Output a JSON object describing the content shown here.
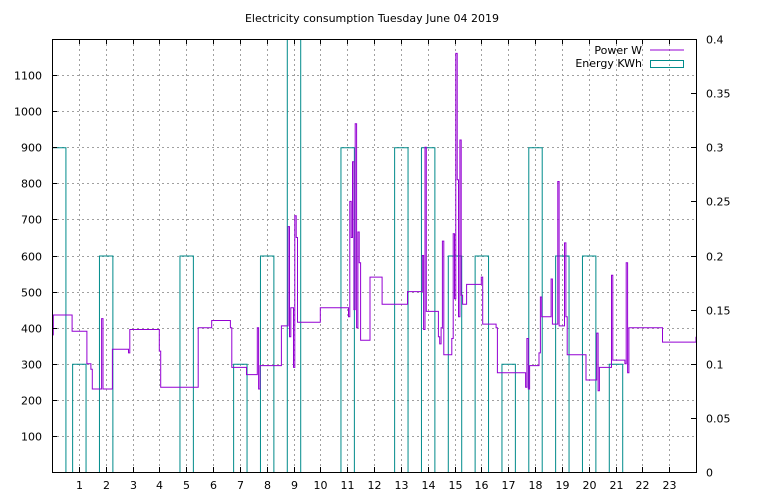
{
  "chart_data": {
    "type": "line",
    "title": "Electricity consumption Tuesday June 04 2019",
    "xlabel": "",
    "ylabel": "",
    "y2label": "",
    "xlim": [
      0,
      24
    ],
    "ylim": [
      0,
      1200
    ],
    "y2lim": [
      0,
      0.4
    ],
    "x_ticks": [
      1,
      2,
      3,
      4,
      5,
      6,
      7,
      8,
      9,
      10,
      11,
      12,
      13,
      14,
      15,
      16,
      17,
      18,
      19,
      20,
      21,
      22,
      23
    ],
    "y_ticks": [
      100,
      200,
      300,
      400,
      500,
      600,
      700,
      800,
      900,
      1000,
      1100
    ],
    "y2_ticks": [
      "0",
      "0.05",
      "0.1",
      "0.15",
      "0.2",
      "0.25",
      "0.3",
      "0.35",
      "0.4"
    ],
    "grid": true,
    "legend_position": "top-right",
    "series": [
      {
        "name": "Power W",
        "color": "#9400d3",
        "style": "step-line",
        "points": [
          [
            0.0,
            380
          ],
          [
            0.05,
            435
          ],
          [
            0.7,
            435
          ],
          [
            0.75,
            390
          ],
          [
            1.2,
            390
          ],
          [
            1.3,
            300
          ],
          [
            1.45,
            285
          ],
          [
            1.5,
            230
          ],
          [
            1.8,
            230
          ],
          [
            1.85,
            425
          ],
          [
            1.9,
            230
          ],
          [
            2.2,
            230
          ],
          [
            2.25,
            340
          ],
          [
            2.8,
            340
          ],
          [
            2.85,
            330
          ],
          [
            2.9,
            395
          ],
          [
            3.9,
            395
          ],
          [
            4.0,
            335
          ],
          [
            4.05,
            235
          ],
          [
            5.4,
            235
          ],
          [
            5.45,
            400
          ],
          [
            5.9,
            400
          ],
          [
            5.95,
            420
          ],
          [
            6.6,
            420
          ],
          [
            6.65,
            400
          ],
          [
            6.7,
            290
          ],
          [
            7.2,
            290
          ],
          [
            7.25,
            270
          ],
          [
            7.6,
            270
          ],
          [
            7.65,
            400
          ],
          [
            7.7,
            230
          ],
          [
            7.75,
            295
          ],
          [
            8.5,
            295
          ],
          [
            8.55,
            405
          ],
          [
            8.75,
            405
          ],
          [
            8.8,
            680
          ],
          [
            8.85,
            375
          ],
          [
            8.9,
            455
          ],
          [
            9.0,
            290
          ],
          [
            9.05,
            710
          ],
          [
            9.1,
            650
          ],
          [
            9.15,
            415
          ],
          [
            9.95,
            415
          ],
          [
            10.0,
            455
          ],
          [
            11.0,
            455
          ],
          [
            11.05,
            430
          ],
          [
            11.1,
            750
          ],
          [
            11.15,
            650
          ],
          [
            11.2,
            860
          ],
          [
            11.25,
            450
          ],
          [
            11.3,
            965
          ],
          [
            11.35,
            400
          ],
          [
            11.4,
            665
          ],
          [
            11.45,
            580
          ],
          [
            11.5,
            365
          ],
          [
            11.8,
            365
          ],
          [
            11.85,
            540
          ],
          [
            12.25,
            540
          ],
          [
            12.3,
            465
          ],
          [
            13.2,
            465
          ],
          [
            13.25,
            500
          ],
          [
            13.75,
            500
          ],
          [
            13.8,
            600
          ],
          [
            13.85,
            395
          ],
          [
            13.9,
            900
          ],
          [
            13.95,
            445
          ],
          [
            14.35,
            445
          ],
          [
            14.4,
            375
          ],
          [
            14.45,
            355
          ],
          [
            14.5,
            400
          ],
          [
            14.55,
            640
          ],
          [
            14.6,
            325
          ],
          [
            14.85,
            325
          ],
          [
            14.9,
            370
          ],
          [
            14.95,
            660
          ],
          [
            15.0,
            480
          ],
          [
            15.05,
            1160
          ],
          [
            15.1,
            810
          ],
          [
            15.15,
            430
          ],
          [
            15.2,
            920
          ],
          [
            15.25,
            490
          ],
          [
            15.3,
            465
          ],
          [
            15.4,
            465
          ],
          [
            15.45,
            520
          ],
          [
            15.95,
            520
          ],
          [
            16.0,
            540
          ],
          [
            16.05,
            410
          ],
          [
            16.5,
            410
          ],
          [
            16.55,
            400
          ],
          [
            16.6,
            275
          ],
          [
            17.6,
            275
          ],
          [
            17.65,
            235
          ],
          [
            17.7,
            370
          ],
          [
            17.75,
            230
          ],
          [
            17.8,
            295
          ],
          [
            18.1,
            295
          ],
          [
            18.15,
            330
          ],
          [
            18.2,
            485
          ],
          [
            18.25,
            430
          ],
          [
            18.55,
            430
          ],
          [
            18.6,
            535
          ],
          [
            18.65,
            410
          ],
          [
            18.8,
            410
          ],
          [
            18.85,
            805
          ],
          [
            18.9,
            405
          ],
          [
            19.05,
            405
          ],
          [
            19.1,
            635
          ],
          [
            19.15,
            430
          ],
          [
            19.2,
            325
          ],
          [
            19.85,
            325
          ],
          [
            19.9,
            255
          ],
          [
            20.25,
            255
          ],
          [
            20.3,
            385
          ],
          [
            20.35,
            225
          ],
          [
            20.4,
            290
          ],
          [
            20.8,
            290
          ],
          [
            20.85,
            545
          ],
          [
            20.9,
            310
          ],
          [
            21.3,
            310
          ],
          [
            21.35,
            300
          ],
          [
            21.4,
            580
          ],
          [
            21.45,
            275
          ],
          [
            21.5,
            400
          ],
          [
            22.7,
            400
          ],
          [
            22.75,
            360
          ],
          [
            24.0,
            375
          ]
        ]
      },
      {
        "name": "Energy KWh",
        "color": "#008b8b",
        "style": "bars",
        "bar_width_hours": 0.5,
        "bars": [
          {
            "x": 0.0,
            "value": 0.3
          },
          {
            "x": 0.75,
            "value": 0.1
          },
          {
            "x": 1.75,
            "value": 0.2
          },
          {
            "x": 4.75,
            "value": 0.2
          },
          {
            "x": 6.75,
            "value": 0.1
          },
          {
            "x": 7.75,
            "value": 0.2
          },
          {
            "x": 8.75,
            "value": 0.4
          },
          {
            "x": 10.75,
            "value": 0.3
          },
          {
            "x": 12.75,
            "value": 0.3
          },
          {
            "x": 13.75,
            "value": 0.3
          },
          {
            "x": 14.75,
            "value": 0.2
          },
          {
            "x": 15.75,
            "value": 0.2
          },
          {
            "x": 16.75,
            "value": 0.1
          },
          {
            "x": 17.75,
            "value": 0.3
          },
          {
            "x": 18.75,
            "value": 0.2
          },
          {
            "x": 19.75,
            "value": 0.2
          },
          {
            "x": 20.75,
            "value": 0.1
          }
        ]
      }
    ]
  }
}
